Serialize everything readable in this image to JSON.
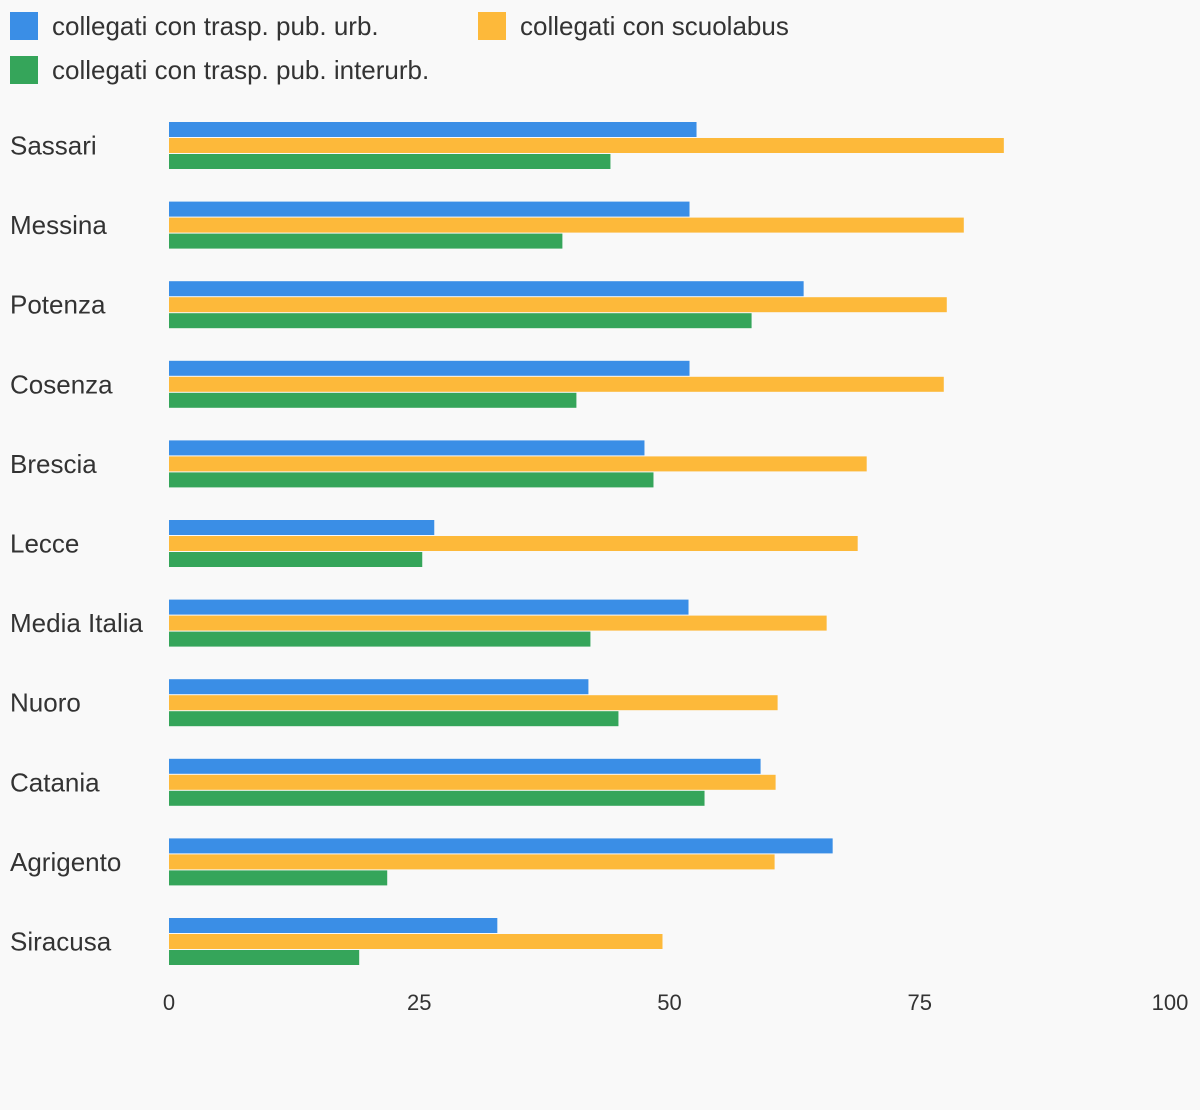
{
  "chart_data": {
    "type": "bar",
    "orientation": "horizontal",
    "title": "",
    "xlabel": "",
    "ylabel": "",
    "xlim": [
      0,
      100
    ],
    "ticks": [
      "0",
      "25",
      "50",
      "75",
      "100"
    ],
    "tick_values": [
      0,
      25,
      50,
      75,
      100
    ],
    "grid": false,
    "legend_position": "top-left",
    "categories": [
      "Sassari",
      "Messina",
      "Potenza",
      "Cosenza",
      "Brescia",
      "Lecce",
      "Media Italia",
      "Nuoro",
      "Catania",
      "Agrigento",
      "Siracusa"
    ],
    "series": [
      {
        "name": "collegati con trasp. pub. urb.",
        "color": "#3a8ee6",
        "values": [
          52.7,
          52.0,
          63.4,
          52.0,
          47.5,
          26.5,
          51.9,
          41.9,
          59.1,
          66.3,
          32.8
        ]
      },
      {
        "name": "collegati con scuolabus",
        "color": "#fdb93a",
        "values": [
          83.4,
          79.4,
          77.7,
          77.4,
          69.7,
          68.8,
          65.7,
          60.8,
          60.6,
          60.5,
          49.3
        ]
      },
      {
        "name": "collegati con trasp. pub. interurb.",
        "color": "#35a55a",
        "values": [
          44.1,
          39.3,
          58.2,
          40.7,
          48.4,
          25.3,
          42.1,
          44.9,
          53.5,
          21.8,
          19.0
        ]
      }
    ]
  }
}
